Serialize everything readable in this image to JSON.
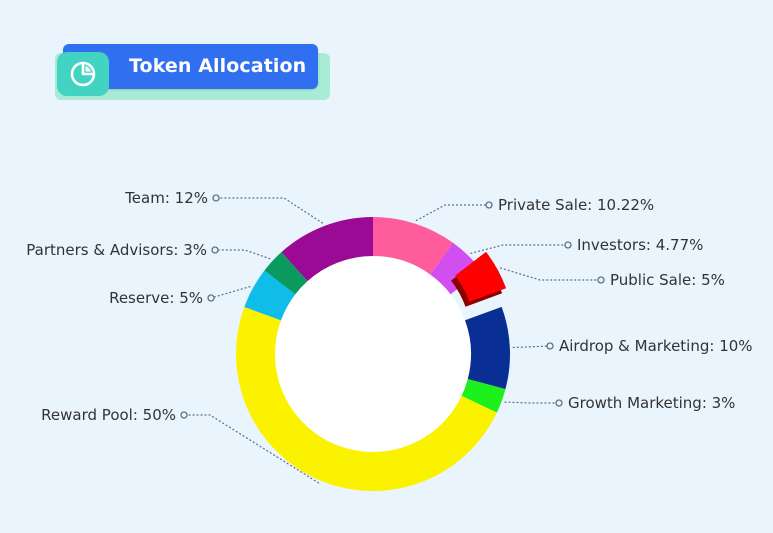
{
  "header": {
    "title": "Token Allocation",
    "icon": "pie-chart-icon"
  },
  "colors": {
    "background": "#eaf4fd",
    "title_bg": "#2f6ff0",
    "title_accent": "#43d3c3",
    "leader_line": "#5b7186"
  },
  "chart_data": {
    "type": "pie",
    "style": "donut",
    "title": "Token Allocation",
    "slices": [
      {
        "label": "Private Sale: 10.22%",
        "name": "Private Sale",
        "value": 10.22,
        "color": "#ff5c9c"
      },
      {
        "label": "Investors: 4.77%",
        "name": "Investors",
        "value": 4.77,
        "color": "#d24ef0"
      },
      {
        "label": "Public Sale: 5%",
        "name": "Public Sale",
        "value": 5,
        "color": "#ff0000",
        "exploded": true
      },
      {
        "label": "Airdrop & Marketing: 10%",
        "name": "Airdrop & Marketing",
        "value": 10,
        "color": "#0a2f94"
      },
      {
        "label": "Growth Marketing: 3%",
        "name": "Growth Marketing",
        "value": 3,
        "color": "#1ef01e"
      },
      {
        "label": "Reward Pool: 50%",
        "name": "Reward Pool",
        "value": 50,
        "color": "#fbf200"
      },
      {
        "label": "Reserve: 5%",
        "name": "Reserve",
        "value": 5,
        "color": "#0fbde8"
      },
      {
        "label": "Partners & Advisors: 3%",
        "name": "Partners & Advisors",
        "value": 3,
        "color": "#0a9a5e"
      },
      {
        "label": "Team: 12%",
        "name": "Team",
        "value": 12,
        "color": "#9b0a94"
      }
    ]
  }
}
